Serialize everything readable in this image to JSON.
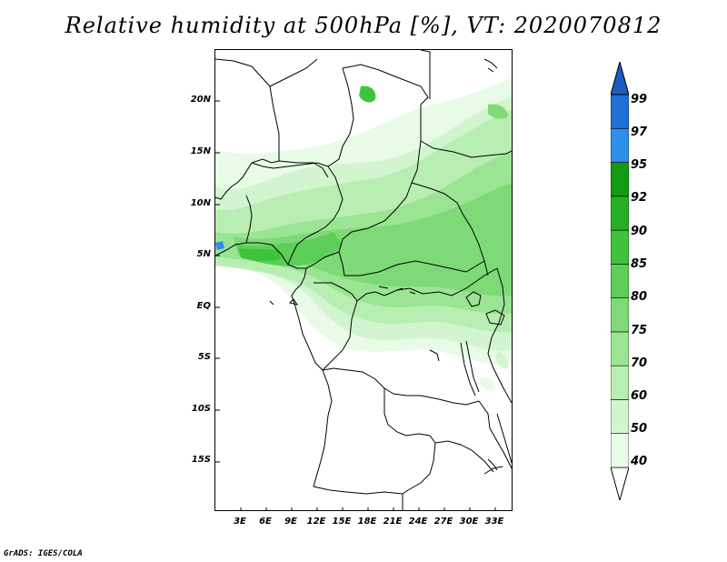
{
  "title": "Relative humidity at 500hPa [%], VT: 2020070812",
  "footer": "GrADS: IGES/COLA",
  "map_axes": {
    "lat_labels": [
      "20N",
      "15N",
      "10N",
      "5N",
      "EQ",
      "5S",
      "10S",
      "15S"
    ],
    "lon_labels": [
      "3E",
      "6E",
      "9E",
      "12E",
      "15E",
      "18E",
      "21E",
      "24E",
      "27E",
      "30E",
      "33E"
    ],
    "lat_values": [
      20,
      15,
      10,
      5,
      0,
      -5,
      -10,
      -15
    ],
    "lon_values": [
      3,
      6,
      9,
      12,
      15,
      18,
      21,
      24,
      27,
      30,
      33
    ]
  },
  "colorbar": {
    "labels": [
      "40",
      "50",
      "60",
      "70",
      "75",
      "80",
      "85",
      "90",
      "92",
      "95",
      "97",
      "99"
    ],
    "colors": [
      "#ffffff",
      "#e8fbe6",
      "#d2f5cf",
      "#b8eeb2",
      "#9ae494",
      "#7dda77",
      "#5dcf58",
      "#3fc23c",
      "#24b022",
      "#129a12",
      "#2d8fe8",
      "#1f6fd6",
      "#1a5cbf"
    ]
  }
}
